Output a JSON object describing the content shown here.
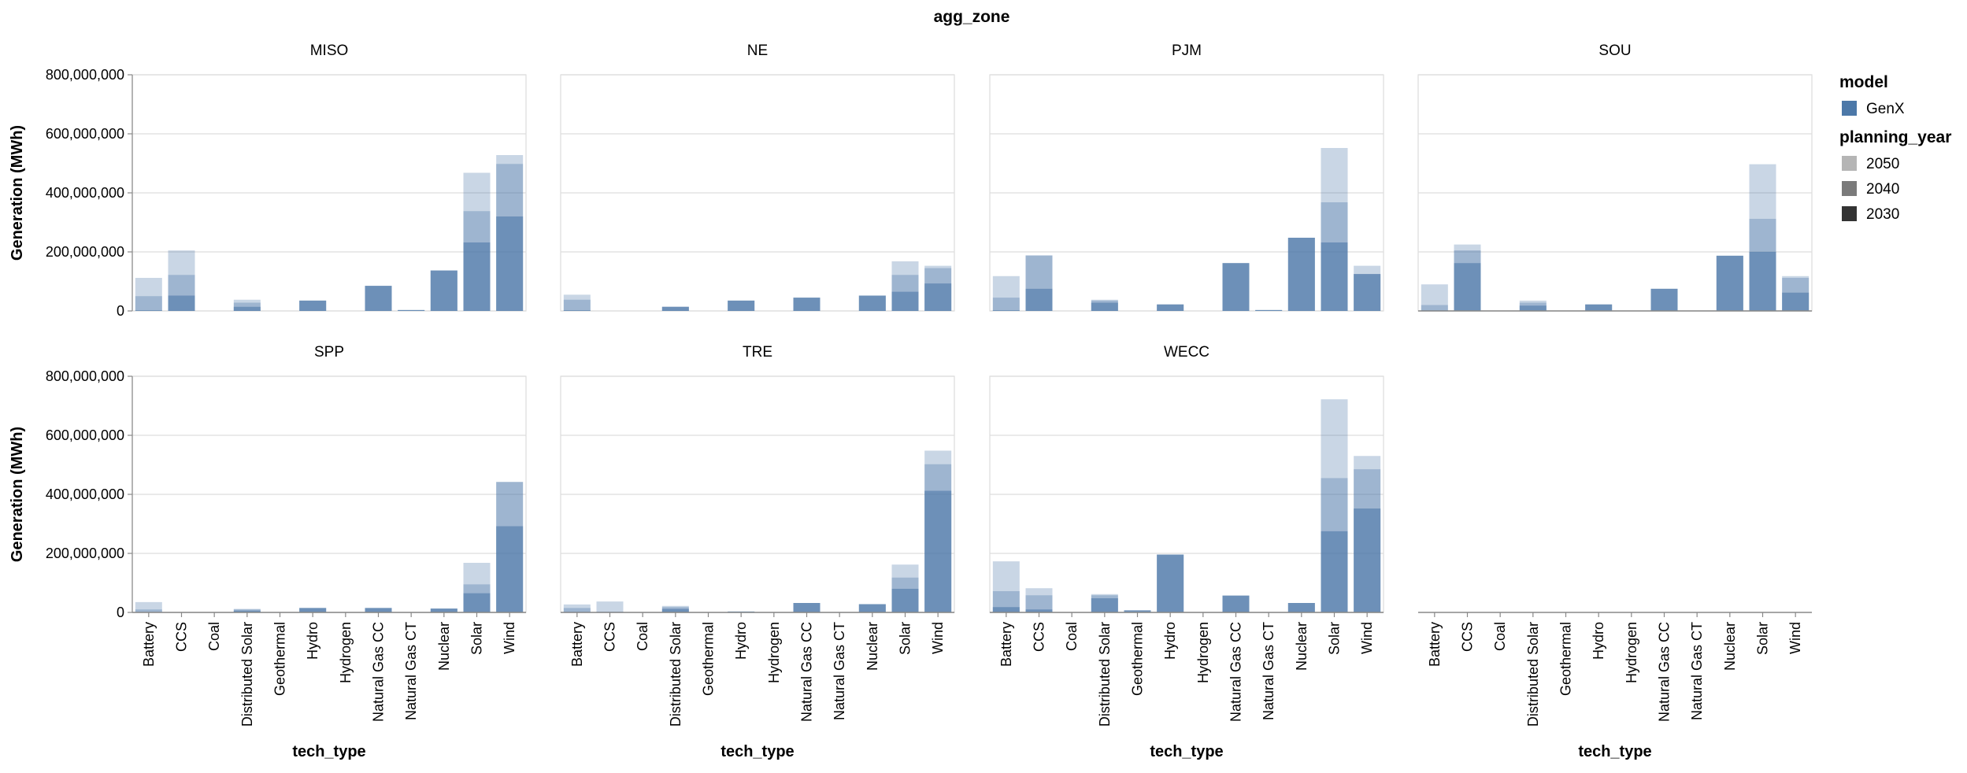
{
  "chart_data": {
    "type": "bar",
    "title": "agg_zone",
    "xlabel": "tech_type",
    "ylabel": "Generation (MWh)",
    "ylim": [
      0,
      800000000
    ],
    "yticks": [
      "0",
      "200,000,000",
      "400,000,000",
      "600,000,000",
      "800,000,000"
    ],
    "ytick_values": [
      0,
      200000000,
      400000000,
      600000000,
      800000000
    ],
    "categories": [
      "Battery",
      "CCS",
      "Coal",
      "Distributed Solar",
      "Geothermal",
      "Hydro",
      "Hydrogen",
      "Natural Gas CC",
      "Natural Gas CT",
      "Nuclear",
      "Solar",
      "Wind"
    ],
    "grid": true,
    "legend": {
      "model_title": "model",
      "model_items": [
        {
          "label": "GenX",
          "color": "#4c78a8"
        }
      ],
      "year_title": "planning_year",
      "year_items": [
        {
          "label": "2050",
          "color": "#b5b5b5"
        },
        {
          "label": "2040",
          "color": "#7a7a7a"
        },
        {
          "label": "2030",
          "color": "#333333"
        }
      ],
      "placement": "right"
    },
    "series_names": [
      "2030",
      "2040",
      "2050"
    ],
    "bar_color": "#4c78a8",
    "facets": [
      {
        "name": "MISO",
        "v2030": [
          2000000,
          52000000,
          0,
          14000000,
          0,
          35000000,
          0,
          85000000,
          3000000,
          137000000,
          232000000,
          320000000
        ],
        "v2040": [
          50000000,
          122000000,
          0,
          28000000,
          0,
          35000000,
          0,
          85000000,
          3000000,
          137000000,
          338000000,
          498000000
        ],
        "v2050": [
          112000000,
          205000000,
          0,
          38000000,
          0,
          35000000,
          0,
          85000000,
          3000000,
          137000000,
          468000000,
          528000000
        ]
      },
      {
        "name": "NE",
        "v2030": [
          2000000,
          0,
          0,
          14000000,
          0,
          35000000,
          0,
          45000000,
          0,
          52000000,
          65000000,
          93000000
        ],
        "v2040": [
          38000000,
          0,
          0,
          14000000,
          0,
          35000000,
          0,
          45000000,
          0,
          52000000,
          122000000,
          145000000
        ],
        "v2050": [
          55000000,
          0,
          0,
          14000000,
          0,
          35000000,
          0,
          45000000,
          0,
          52000000,
          168000000,
          153000000
        ]
      },
      {
        "name": "PJM",
        "v2030": [
          2000000,
          75000000,
          0,
          28000000,
          0,
          22000000,
          0,
          162000000,
          3000000,
          248000000,
          232000000,
          125000000
        ],
        "v2040": [
          45000000,
          188000000,
          0,
          35000000,
          0,
          22000000,
          0,
          162000000,
          3000000,
          248000000,
          368000000,
          125000000
        ],
        "v2050": [
          118000000,
          188000000,
          0,
          38000000,
          0,
          22000000,
          0,
          162000000,
          3000000,
          248000000,
          552000000,
          153000000
        ]
      },
      {
        "name": "SOU",
        "v2030": [
          2000000,
          162000000,
          0,
          18000000,
          0,
          22000000,
          0,
          75000000,
          0,
          187000000,
          200000000,
          62000000
        ],
        "v2040": [
          20000000,
          205000000,
          0,
          28000000,
          0,
          22000000,
          0,
          75000000,
          0,
          187000000,
          312000000,
          112000000
        ],
        "v2050": [
          90000000,
          225000000,
          0,
          35000000,
          0,
          22000000,
          0,
          75000000,
          0,
          187000000,
          497000000,
          118000000
        ]
      },
      {
        "name": "SPP",
        "v2030": [
          1000000,
          1000000,
          0,
          6000000,
          0,
          15000000,
          0,
          15000000,
          1000000,
          13000000,
          65000000,
          292000000
        ],
        "v2040": [
          10000000,
          1000000,
          0,
          10000000,
          0,
          15000000,
          0,
          15000000,
          1000000,
          13000000,
          95000000,
          442000000
        ],
        "v2050": [
          35000000,
          1000000,
          0,
          12000000,
          0,
          15000000,
          0,
          15000000,
          1000000,
          13000000,
          168000000,
          442000000
        ]
      },
      {
        "name": "TRE",
        "v2030": [
          2000000,
          2000000,
          0,
          12000000,
          0,
          3000000,
          0,
          32000000,
          0,
          28000000,
          80000000,
          412000000
        ],
        "v2040": [
          15000000,
          2000000,
          0,
          18000000,
          0,
          3000000,
          0,
          32000000,
          0,
          28000000,
          118000000,
          502000000
        ],
        "v2050": [
          27000000,
          37000000,
          0,
          22000000,
          0,
          3000000,
          0,
          32000000,
          0,
          28000000,
          162000000,
          548000000
        ]
      },
      {
        "name": "WECC",
        "v2030": [
          18000000,
          10000000,
          0,
          48000000,
          5000000,
          196000000,
          0,
          57000000,
          0,
          32000000,
          275000000,
          352000000
        ],
        "v2040": [
          72000000,
          58000000,
          0,
          58000000,
          8000000,
          196000000,
          0,
          57000000,
          0,
          32000000,
          455000000,
          485000000
        ],
        "v2050": [
          173000000,
          82000000,
          0,
          62000000,
          8000000,
          196000000,
          0,
          57000000,
          0,
          32000000,
          722000000,
          530000000
        ]
      }
    ],
    "empty_facet": {
      "name": ""
    }
  }
}
